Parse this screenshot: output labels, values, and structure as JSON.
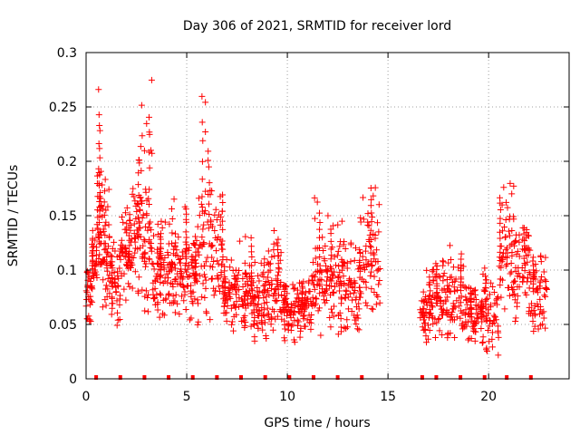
{
  "chart_data": {
    "type": "scatter",
    "title": "Day 306 of 2021, SRMTID for receiver lord",
    "xlabel": "GPS time / hours",
    "ylabel": "SRMTID / TECUs",
    "xlim": [
      0,
      24
    ],
    "ylim": [
      0,
      0.3
    ],
    "xticks": [
      0,
      5,
      10,
      15,
      20
    ],
    "xtick_labels": [
      "0",
      "5",
      "10",
      "15",
      "20"
    ],
    "yticks": [
      0,
      0.05,
      0.1,
      0.15,
      0.2,
      0.25,
      0.3
    ],
    "ytick_labels": [
      "0",
      "0.05",
      "0.1",
      "0.15",
      "0.2",
      "0.25",
      "0.3"
    ],
    "grid": true,
    "marker": "+",
    "series_color": "#ff0000",
    "baseline_marker_hours": [
      0.5,
      1.7,
      2.9,
      4.1,
      5.3,
      6.5,
      7.7,
      8.9,
      10.1,
      11.3,
      12.5,
      13.7,
      16.7,
      17.4,
      18.6,
      19.8,
      20.9,
      22.1
    ],
    "data_gap_hours": [
      15.0,
      16.6
    ],
    "clusters": [
      {
        "x": [
          0.0,
          0.3
        ],
        "base": 0.07,
        "spread": 0.02,
        "peak": 0.1,
        "n": 25
      },
      {
        "x": [
          0.3,
          0.55
        ],
        "base": 0.11,
        "spread": 0.025,
        "peak": 0.145,
        "n": 30
      },
      {
        "x": [
          0.55,
          0.8
        ],
        "base": 0.15,
        "spread": 0.04,
        "peak": 0.27,
        "n": 45
      },
      {
        "x": [
          0.8,
          1.2
        ],
        "base": 0.11,
        "spread": 0.035,
        "peak": 0.19,
        "n": 40
      },
      {
        "x": [
          1.2,
          1.7
        ],
        "base": 0.085,
        "spread": 0.025,
        "peak": 0.13,
        "n": 40
      },
      {
        "x": [
          1.7,
          2.2
        ],
        "base": 0.11,
        "spread": 0.03,
        "peak": 0.16,
        "n": 45
      },
      {
        "x": [
          2.2,
          2.7
        ],
        "base": 0.13,
        "spread": 0.035,
        "peak": 0.22,
        "n": 45
      },
      {
        "x": [
          2.7,
          3.3
        ],
        "base": 0.11,
        "spread": 0.04,
        "peak": 0.275,
        "n": 55
      },
      {
        "x": [
          3.3,
          4.2
        ],
        "base": 0.09,
        "spread": 0.03,
        "peak": 0.145,
        "n": 70
      },
      {
        "x": [
          4.2,
          5.0
        ],
        "base": 0.1,
        "spread": 0.03,
        "peak": 0.17,
        "n": 70
      },
      {
        "x": [
          5.0,
          5.6
        ],
        "base": 0.09,
        "spread": 0.03,
        "peak": 0.14,
        "n": 50
      },
      {
        "x": [
          5.6,
          6.2
        ],
        "base": 0.12,
        "spread": 0.045,
        "peak": 0.265,
        "n": 50
      },
      {
        "x": [
          6.2,
          6.8
        ],
        "base": 0.11,
        "spread": 0.03,
        "peak": 0.185,
        "n": 45
      },
      {
        "x": [
          6.8,
          7.5
        ],
        "base": 0.07,
        "spread": 0.02,
        "peak": 0.11,
        "n": 55
      },
      {
        "x": [
          7.5,
          8.3
        ],
        "base": 0.075,
        "spread": 0.025,
        "peak": 0.14,
        "n": 60
      },
      {
        "x": [
          8.3,
          9.0
        ],
        "base": 0.065,
        "spread": 0.02,
        "peak": 0.12,
        "n": 55
      },
      {
        "x": [
          9.0,
          9.7
        ],
        "base": 0.085,
        "spread": 0.03,
        "peak": 0.14,
        "n": 55
      },
      {
        "x": [
          9.7,
          10.4
        ],
        "base": 0.06,
        "spread": 0.02,
        "peak": 0.09,
        "n": 55
      },
      {
        "x": [
          10.4,
          11.2
        ],
        "base": 0.065,
        "spread": 0.02,
        "peak": 0.09,
        "n": 60
      },
      {
        "x": [
          11.2,
          12.0
        ],
        "base": 0.08,
        "spread": 0.03,
        "peak": 0.17,
        "n": 60
      },
      {
        "x": [
          12.0,
          12.8
        ],
        "base": 0.085,
        "spread": 0.03,
        "peak": 0.15,
        "n": 60
      },
      {
        "x": [
          12.8,
          13.6
        ],
        "base": 0.075,
        "spread": 0.025,
        "peak": 0.13,
        "n": 55
      },
      {
        "x": [
          13.6,
          14.6
        ],
        "base": 0.1,
        "spread": 0.035,
        "peak": 0.19,
        "n": 65
      },
      {
        "x": [
          16.6,
          17.2
        ],
        "base": 0.06,
        "spread": 0.02,
        "peak": 0.105,
        "n": 45
      },
      {
        "x": [
          17.2,
          18.0
        ],
        "base": 0.07,
        "spread": 0.025,
        "peak": 0.11,
        "n": 60
      },
      {
        "x": [
          18.0,
          18.9
        ],
        "base": 0.07,
        "spread": 0.025,
        "peak": 0.125,
        "n": 60
      },
      {
        "x": [
          18.9,
          19.7
        ],
        "base": 0.055,
        "spread": 0.02,
        "peak": 0.09,
        "n": 55
      },
      {
        "x": [
          19.7,
          20.5
        ],
        "base": 0.055,
        "spread": 0.025,
        "peak": 0.105,
        "n": 55
      },
      {
        "x": [
          20.5,
          21.3
        ],
        "base": 0.11,
        "spread": 0.04,
        "peak": 0.18,
        "n": 60
      },
      {
        "x": [
          21.3,
          22.0
        ],
        "base": 0.1,
        "spread": 0.035,
        "peak": 0.15,
        "n": 50
      },
      {
        "x": [
          22.0,
          22.9
        ],
        "base": 0.08,
        "spread": 0.025,
        "peak": 0.12,
        "n": 60
      }
    ]
  }
}
